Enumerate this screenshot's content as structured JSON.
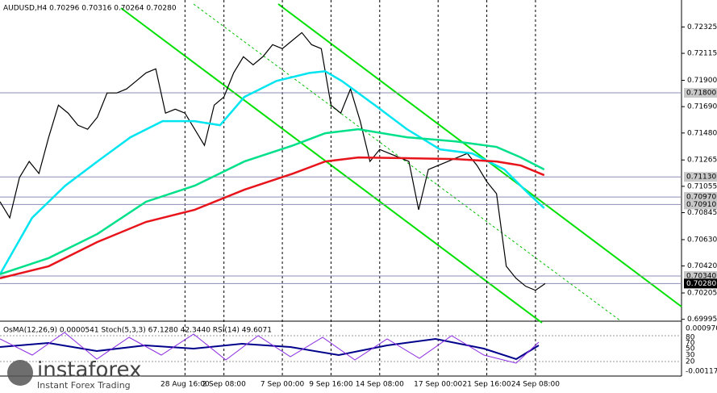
{
  "chart_data": {
    "type": "line",
    "title": "AUDUSD,H4  0.70296 0.70316 0.70264 0.70280",
    "xlim": [
      0,
      70
    ],
    "ylim": [
      0.6998,
      0.7254
    ],
    "xticks": [
      {
        "value": 19,
        "label": "28 Aug 16:00"
      },
      {
        "value": 23,
        "label": "2 Sep 08:00"
      },
      {
        "value": 29,
        "label": "7 Sep 00:00"
      },
      {
        "value": 34,
        "label": "9 Sep 16:00"
      },
      {
        "value": 39,
        "label": "14 Sep 08:00"
      },
      {
        "value": 45,
        "label": "17 Sep 00:00"
      },
      {
        "value": 50,
        "label": "21 Sep 16:00"
      },
      {
        "value": 55,
        "label": "24 Sep 08:00"
      }
    ],
    "yticks": [
      {
        "value": 0.72325,
        "label": "0.72325"
      },
      {
        "value": 0.72115,
        "label": "0.72115"
      },
      {
        "value": 0.719,
        "label": "0.71900"
      },
      {
        "value": 0.7169,
        "label": "0.71690"
      },
      {
        "value": 0.7148,
        "label": "0.71480"
      },
      {
        "value": 0.71265,
        "label": "0.71265"
      },
      {
        "value": 0.71055,
        "label": "0.71055"
      },
      {
        "value": 0.70845,
        "label": "0.70845"
      },
      {
        "value": 0.7063,
        "label": "0.70630"
      },
      {
        "value": 0.7042,
        "label": "0.70420"
      },
      {
        "value": 0.70205,
        "label": "0.70205"
      },
      {
        "value": 0.69995,
        "label": "0.69995"
      }
    ],
    "levels": [
      {
        "value": 0.718,
        "label": "0.71800"
      },
      {
        "value": 0.7113,
        "label": "0.71130"
      },
      {
        "value": 0.7097,
        "label": "0.70970"
      },
      {
        "value": 0.7091,
        "label": "0.70910"
      },
      {
        "value": 0.7034,
        "label": "0.70340"
      },
      {
        "value": 0.7028,
        "label": "0.70280"
      }
    ],
    "series": [
      {
        "color": "#000000",
        "values": [
          0.70932,
          0.70804,
          0.71125,
          0.71253,
          0.71157,
          0.71446,
          0.71702,
          0.71638,
          0.71542,
          0.7151,
          0.71606,
          0.71799,
          0.71799,
          0.71831,
          0.71895,
          0.71959,
          0.71991,
          0.71638,
          0.7167,
          0.71638,
          0.7151,
          0.71381,
          0.71702,
          0.71767,
          0.71959,
          0.72088,
          0.72023,
          0.72088,
          0.72184,
          0.72152,
          0.72216,
          0.7228,
          0.72184,
          0.72152,
          0.71702,
          0.71638,
          0.71831,
          0.71574,
          0.71253,
          0.71349,
          0.71317,
          0.71285,
          0.71253,
          0.70868,
          0.71189,
          0.71221,
          0.71253,
          0.71285,
          0.71317,
          0.71221,
          0.71092,
          0.70996,
          0.70418,
          0.70322,
          0.70258,
          0.70226,
          0.7028
        ]
      },
      {
        "color": "#00e5f0",
        "x": [
          0,
          3.3,
          6.7,
          10,
          13.4,
          16.7,
          20,
          22.6,
          25.1,
          28.4,
          31.8,
          33.4,
          35.1,
          38.5,
          41.8,
          45.2,
          48.5,
          51.8,
          54.3,
          55.9
        ],
        "values": [
          0.70354,
          0.70804,
          0.7106,
          0.71253,
          0.71446,
          0.71574,
          0.71574,
          0.71542,
          0.71767,
          0.71895,
          0.71959,
          0.71972,
          0.71895,
          0.71702,
          0.7151,
          0.71349,
          0.71317,
          0.71189,
          0.70996,
          0.70881
        ]
      },
      {
        "color": "#00e08a",
        "x": [
          0,
          5,
          10,
          15,
          20,
          25.1,
          30.1,
          33.4,
          36.8,
          41.8,
          46.8,
          51,
          53.5,
          55.9
        ],
        "values": [
          0.70354,
          0.70483,
          0.70675,
          0.70932,
          0.7106,
          0.71253,
          0.71381,
          0.71478,
          0.7151,
          0.71446,
          0.71413,
          0.71369,
          0.71285,
          0.71189
        ]
      },
      {
        "color": "#e8141c",
        "x": [
          0,
          5,
          10,
          15,
          20,
          25.1,
          30.1,
          33.4,
          36.8,
          41.8,
          46.8,
          51,
          53.5,
          55.9
        ],
        "values": [
          0.70322,
          0.70418,
          0.70611,
          0.70771,
          0.70868,
          0.71028,
          0.71157,
          0.71253,
          0.71285,
          0.71279,
          0.71272,
          0.71253,
          0.71221,
          0.71144
        ]
      }
    ]
  },
  "indicator": {
    "caption": "OsMA(12,26,9) 0.0000541  Stoch(5,3,3) 67.1280 42.3440  RSI(14) 49.6071",
    "top": "0.000970",
    "bottom": "-0.001176",
    "levels": [
      "80",
      "70",
      "50",
      "30",
      "20"
    ]
  },
  "watermark": {
    "brand": "instaforex",
    "tagline": "Instant Forex Trading"
  }
}
